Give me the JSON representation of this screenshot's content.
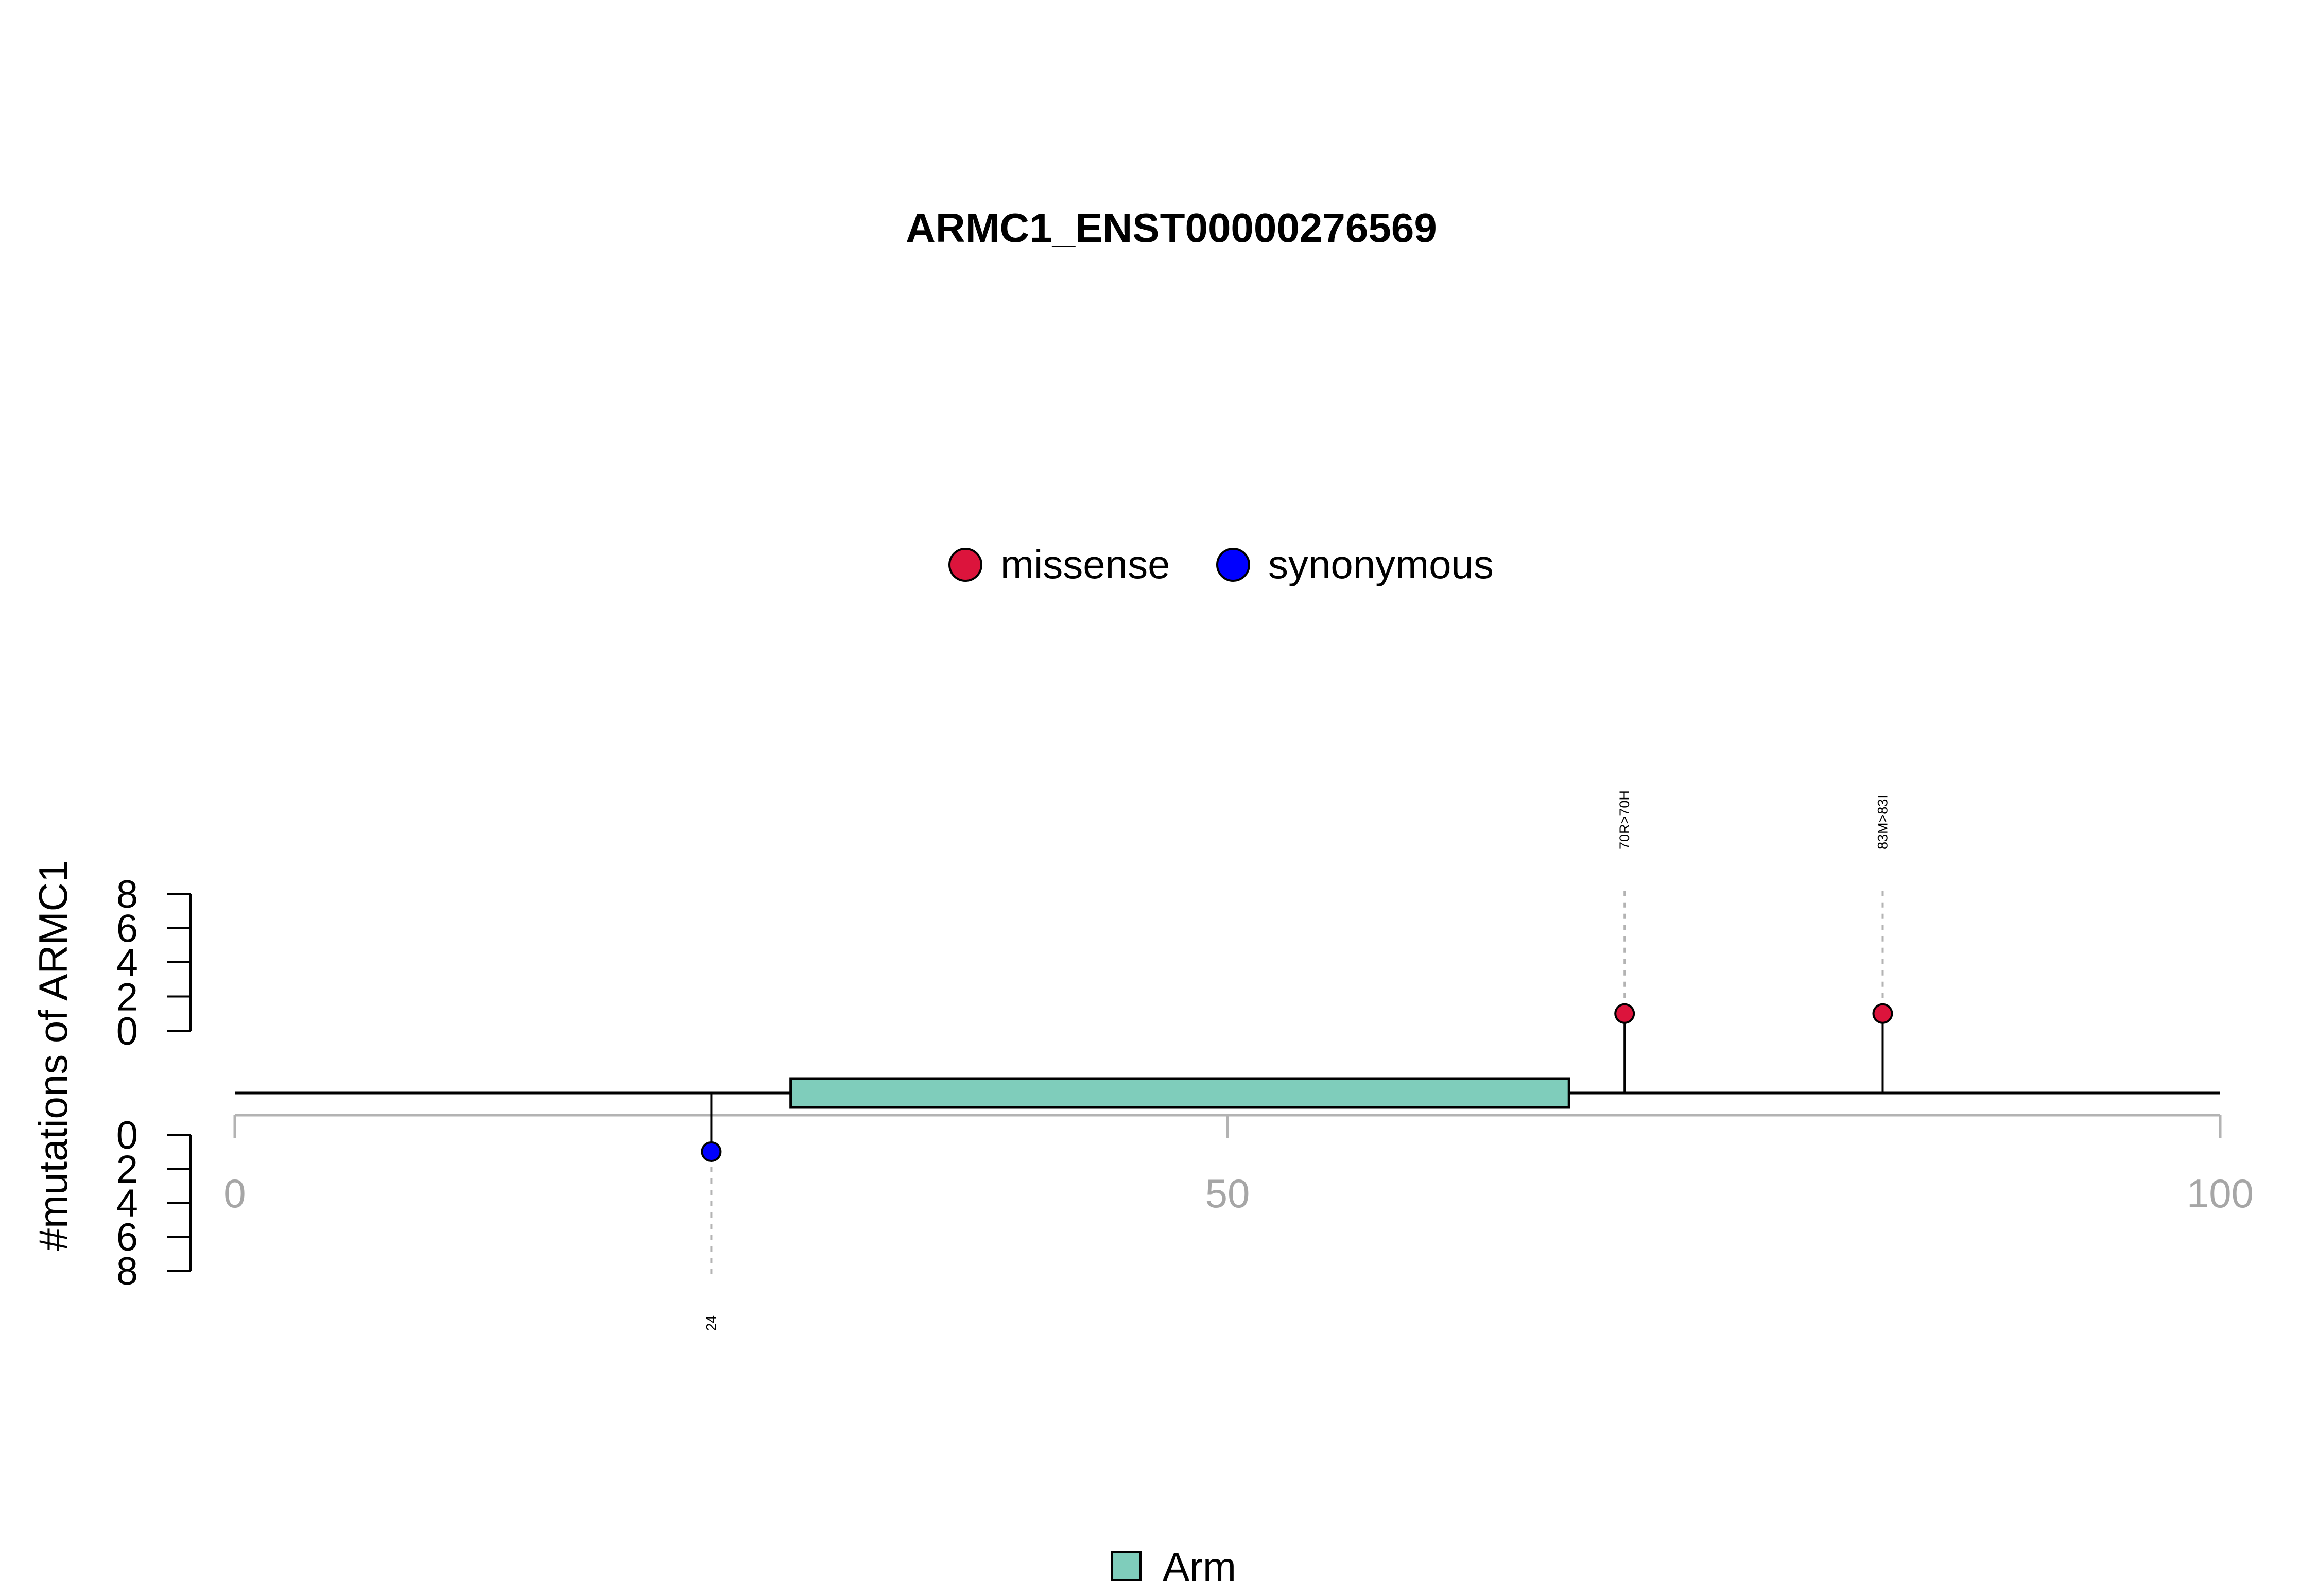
{
  "chart_data": {
    "type": "lollipop",
    "title": "ARMC1_ENST00000276569",
    "ylabel": "#mutations of ARMC1",
    "xlim": [
      0,
      100
    ],
    "x_ticks": [
      0,
      50,
      100
    ],
    "y_ticks": [
      0,
      2,
      4,
      6,
      8
    ],
    "y_tick_labels": [
      "0",
      "2",
      "4",
      "6",
      "8"
    ],
    "ylim_top": [
      0,
      8
    ],
    "ylim_bottom": [
      0,
      8
    ],
    "legend_mutations": [
      {
        "name": "missense",
        "color": "#dc143c"
      },
      {
        "name": "synonymous",
        "color": "#0000ff"
      }
    ],
    "legend_domains": [
      {
        "name": "Arm",
        "color": "#7fcdbb"
      }
    ],
    "domains": [
      {
        "name": "Arm",
        "start": 28,
        "end": 67.2,
        "color": "#7fcdbb"
      }
    ],
    "mutations": [
      {
        "position": 24,
        "count": 1,
        "type": "synonymous",
        "label": "24",
        "side": "bottom"
      },
      {
        "position": 70,
        "count": 1,
        "type": "missense",
        "label": "70R>70H",
        "side": "top"
      },
      {
        "position": 83,
        "count": 1,
        "type": "missense",
        "label": "83M>83I",
        "side": "top"
      }
    ]
  }
}
